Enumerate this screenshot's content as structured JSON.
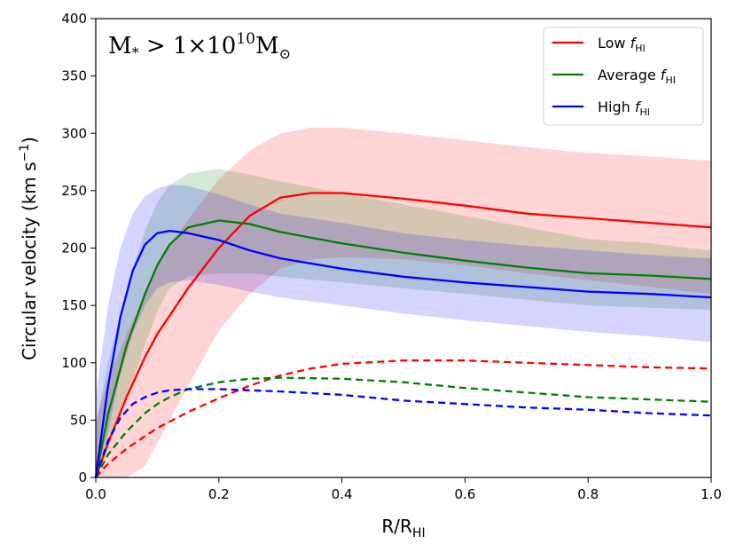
{
  "chart_data": {
    "type": "line",
    "annotation": {
      "prefix": "M",
      "sub": "*",
      "relation": " > 1×10",
      "exponent": "10",
      "unit": "M",
      "unit_sub": "⊙"
    },
    "xlabel": {
      "main": "R/R",
      "sub": "HI"
    },
    "ylabel": {
      "main": "Circular velocity (km s",
      "sup": "−1",
      "end": ")"
    },
    "xlim": [
      0,
      1
    ],
    "ylim": [
      0,
      400
    ],
    "x_ticks": [
      "0.0",
      "0.2",
      "0.4",
      "0.6",
      "0.8",
      "1.0"
    ],
    "y_ticks": [
      "0",
      "50",
      "100",
      "150",
      "200",
      "250",
      "300",
      "350",
      "400"
    ],
    "legend_position": "top-right",
    "series": [
      {
        "name": "Low f_HI",
        "label_main": "Low ",
        "label_f": "f",
        "label_sub": "HI",
        "color": "#ff0000",
        "x": [
          0,
          0.02,
          0.05,
          0.08,
          0.1,
          0.15,
          0.2,
          0.25,
          0.3,
          0.35,
          0.4,
          0.5,
          0.6,
          0.7,
          0.8,
          0.9,
          1.0
        ],
        "solid": [
          0,
          30,
          70,
          105,
          125,
          165,
          200,
          228,
          244,
          248,
          248,
          243,
          237,
          230,
          226,
          222,
          218
        ],
        "lower": [
          0,
          0,
          0,
          10,
          30,
          80,
          128,
          160,
          182,
          190,
          192,
          190,
          185,
          178,
          172,
          166,
          160
        ],
        "upper": [
          50,
          85,
          125,
          160,
          185,
          225,
          260,
          285,
          300,
          305,
          305,
          300,
          294,
          288,
          283,
          280,
          276
        ],
        "dashed": [
          0,
          12,
          25,
          36,
          43,
          57,
          69,
          80,
          89,
          95,
          99,
          102,
          102,
          100,
          98,
          96,
          95
        ]
      },
      {
        "name": "Average f_HI",
        "label_main": "Average ",
        "label_f": "f",
        "label_sub": "HI",
        "color": "#008000",
        "x": [
          0,
          0.02,
          0.05,
          0.08,
          0.1,
          0.12,
          0.15,
          0.2,
          0.25,
          0.3,
          0.4,
          0.5,
          0.6,
          0.7,
          0.8,
          0.9,
          1.0
        ],
        "solid": [
          0,
          55,
          115,
          160,
          185,
          203,
          218,
          224,
          221,
          214,
          204,
          196,
          189,
          183,
          178,
          176,
          173
        ],
        "lower": [
          0,
          25,
          70,
          115,
          145,
          165,
          175,
          178,
          178,
          175,
          170,
          165,
          160,
          155,
          150,
          148,
          146
        ],
        "upper": [
          45,
          100,
          165,
          215,
          240,
          255,
          265,
          269,
          264,
          258,
          248,
          238,
          228,
          218,
          208,
          204,
          198
        ],
        "dashed": [
          0,
          20,
          40,
          56,
          64,
          70,
          77,
          83,
          86,
          87,
          86,
          83,
          78,
          74,
          70,
          68,
          66
        ]
      },
      {
        "name": "High f_HI",
        "label_main": "High ",
        "label_f": "f",
        "label_sub": "HI",
        "color": "#0000ff",
        "x": [
          0,
          0.02,
          0.04,
          0.06,
          0.08,
          0.1,
          0.12,
          0.15,
          0.2,
          0.25,
          0.3,
          0.4,
          0.5,
          0.6,
          0.7,
          0.8,
          0.9,
          1.0
        ],
        "solid": [
          0,
          80,
          140,
          180,
          203,
          213,
          215,
          213,
          207,
          198,
          191,
          182,
          175,
          170,
          166,
          162,
          160,
          157
        ],
        "lower": [
          0,
          40,
          90,
          125,
          150,
          165,
          170,
          172,
          168,
          162,
          157,
          150,
          143,
          137,
          132,
          127,
          123,
          118
        ],
        "upper": [
          70,
          150,
          200,
          230,
          245,
          252,
          255,
          254,
          247,
          238,
          230,
          222,
          213,
          207,
          202,
          198,
          194,
          191
        ],
        "dashed": [
          0,
          32,
          52,
          64,
          70,
          74,
          76,
          77,
          77,
          76,
          75,
          72,
          67,
          64,
          61,
          59,
          56,
          54
        ]
      }
    ]
  }
}
